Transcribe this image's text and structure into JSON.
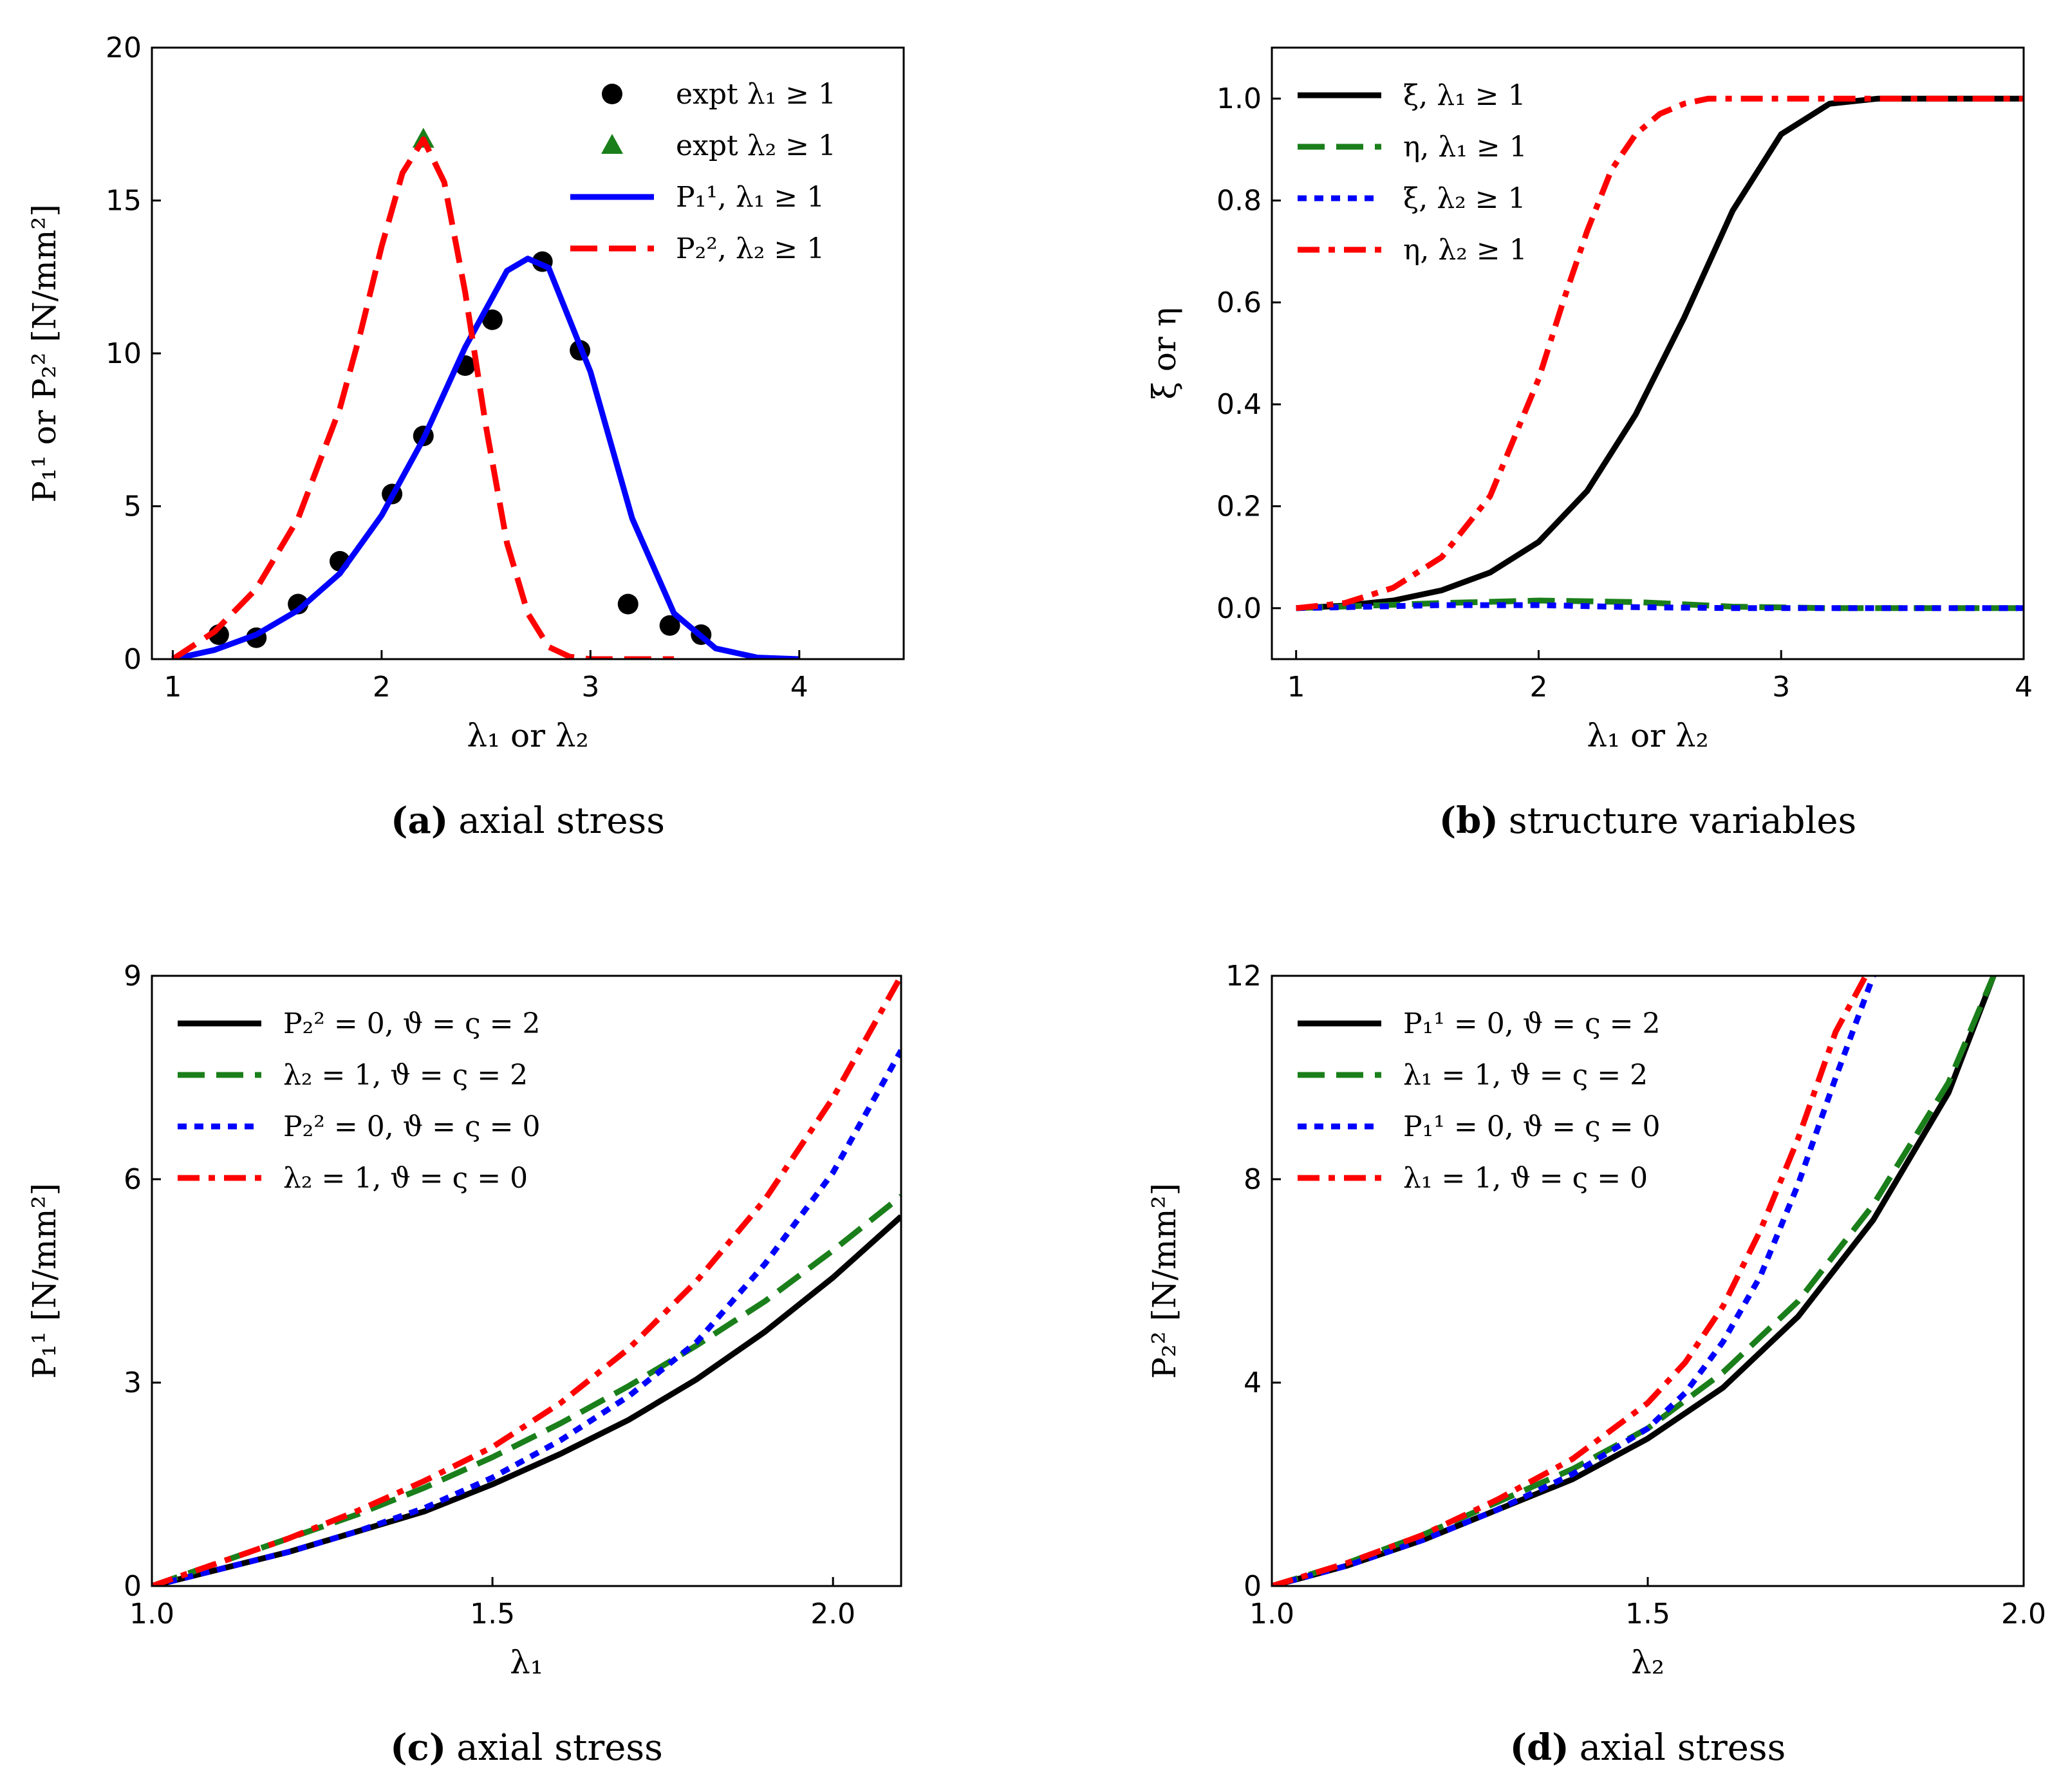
{
  "chart_data": [
    {
      "id": "a",
      "type": "line",
      "caption_tag": "(a)",
      "caption": "axial stress",
      "xlabel": "λ₁ or λ₂",
      "ylabel": "P₁¹ or P₂² [N/mm²]",
      "xlim": [
        0.9,
        4.5
      ],
      "ylim": [
        0,
        20
      ],
      "xticks": [
        1,
        2,
        3,
        4
      ],
      "yticks": [
        0,
        5,
        10,
        15,
        20
      ],
      "legend_position": "top-right",
      "series": [
        {
          "name": "expt λ₁ ≥ 1",
          "style": "scatter-circle",
          "color": "#000000",
          "x": [
            1.22,
            1.4,
            1.6,
            1.8,
            2.05,
            2.2,
            2.4,
            2.53,
            2.77,
            2.95,
            3.18,
            3.38,
            3.53
          ],
          "y": [
            0.8,
            0.7,
            1.8,
            3.2,
            5.4,
            7.3,
            9.6,
            11.1,
            13.0,
            10.1,
            1.8,
            1.1,
            0.8
          ]
        },
        {
          "name": "expt λ₂ ≥ 1",
          "style": "scatter-triangle",
          "color": "#1a7f1a",
          "x": [
            2.2
          ],
          "y": [
            17.0
          ]
        },
        {
          "name": "P₁¹, λ₁ ≥ 1",
          "style": "solid",
          "color": "#0000ff",
          "x": [
            1.0,
            1.2,
            1.4,
            1.6,
            1.8,
            2.0,
            2.2,
            2.4,
            2.6,
            2.7,
            2.8,
            3.0,
            3.2,
            3.4,
            3.6,
            3.8,
            4.0
          ],
          "y": [
            0.0,
            0.3,
            0.8,
            1.6,
            2.8,
            4.7,
            7.2,
            10.2,
            12.7,
            13.1,
            12.8,
            9.4,
            4.6,
            1.5,
            0.35,
            0.05,
            0.0
          ]
        },
        {
          "name": "P₂², λ₂ ≥ 1",
          "style": "dashed",
          "color": "#ff0000",
          "x": [
            1.0,
            1.2,
            1.4,
            1.6,
            1.8,
            1.9,
            2.0,
            2.1,
            2.2,
            2.3,
            2.4,
            2.5,
            2.6,
            2.7,
            2.8,
            2.9,
            3.0,
            3.2,
            3.4
          ],
          "y": [
            0.0,
            0.9,
            2.3,
            4.6,
            8.2,
            10.7,
            13.5,
            15.9,
            17.0,
            15.6,
            12.0,
            7.6,
            3.8,
            1.5,
            0.4,
            0.08,
            0.0,
            0.0,
            0.0
          ]
        }
      ]
    },
    {
      "id": "b",
      "type": "line",
      "caption_tag": "(b)",
      "caption": "structure variables",
      "xlabel": "λ₁ or λ₂",
      "ylabel": "ξ or η",
      "xlim": [
        0.9,
        4.0
      ],
      "ylim": [
        -0.1,
        1.1
      ],
      "xticks": [
        1,
        2,
        3,
        4
      ],
      "yticks": [
        0.0,
        0.2,
        0.4,
        0.6,
        0.8,
        1.0
      ],
      "ytick_labels": [
        "0.0",
        "0.2",
        "0.4",
        "0.6",
        "0.8",
        "1.0"
      ],
      "legend_position": "top-left",
      "series": [
        {
          "name": "ξ, λ₁ ≥ 1",
          "style": "solid",
          "color": "#000000",
          "x": [
            1.0,
            1.2,
            1.4,
            1.6,
            1.8,
            2.0,
            2.2,
            2.4,
            2.6,
            2.8,
            3.0,
            3.2,
            3.4,
            3.6,
            4.0
          ],
          "y": [
            0.0,
            0.005,
            0.015,
            0.035,
            0.07,
            0.13,
            0.23,
            0.38,
            0.57,
            0.78,
            0.93,
            0.99,
            1.0,
            1.0,
            1.0
          ]
        },
        {
          "name": "η, λ₁ ≥ 1",
          "style": "dashed",
          "color": "#1a7f1a",
          "x": [
            1.0,
            1.3,
            1.6,
            2.0,
            2.4,
            2.8,
            3.2,
            4.0
          ],
          "y": [
            0.0,
            0.005,
            0.01,
            0.015,
            0.012,
            0.003,
            0.0,
            0.0
          ]
        },
        {
          "name": "ξ, λ₂ ≥ 1",
          "style": "dotted",
          "color": "#0000ff",
          "x": [
            1.0,
            1.3,
            1.6,
            2.0,
            2.4,
            2.8,
            3.2,
            4.0
          ],
          "y": [
            0.0,
            0.003,
            0.006,
            0.006,
            0.002,
            0.0,
            0.0,
            0.0
          ]
        },
        {
          "name": "η, λ₂ ≥ 1",
          "style": "dashdot",
          "color": "#ff0000",
          "x": [
            1.0,
            1.2,
            1.4,
            1.6,
            1.8,
            2.0,
            2.1,
            2.2,
            2.3,
            2.4,
            2.5,
            2.6,
            2.7,
            2.8,
            3.0,
            3.5,
            4.0
          ],
          "y": [
            0.0,
            0.01,
            0.04,
            0.1,
            0.22,
            0.45,
            0.6,
            0.74,
            0.86,
            0.93,
            0.97,
            0.99,
            1.0,
            1.0,
            1.0,
            1.0,
            1.0
          ]
        }
      ]
    },
    {
      "id": "c",
      "type": "line",
      "caption_tag": "(c)",
      "caption": "axial stress",
      "xlabel": "λ₁",
      "ylabel": "P₁¹ [N/mm²]",
      "xlim": [
        1.0,
        2.1
      ],
      "ylim": [
        0,
        9
      ],
      "xticks": [
        1.0,
        1.5,
        2.0
      ],
      "xtick_labels": [
        "1.0",
        "1.5",
        "2.0"
      ],
      "yticks": [
        0,
        3,
        6,
        9
      ],
      "legend_position": "top-left",
      "series": [
        {
          "name": "P₂² = 0, ϑ = ς = 2",
          "style": "solid",
          "color": "#000000",
          "x": [
            1.0,
            1.1,
            1.2,
            1.3,
            1.4,
            1.5,
            1.6,
            1.7,
            1.8,
            1.9,
            2.0,
            2.1
          ],
          "y": [
            0.0,
            0.25,
            0.5,
            0.8,
            1.1,
            1.5,
            1.95,
            2.45,
            3.05,
            3.75,
            4.55,
            5.45
          ]
        },
        {
          "name": "λ₂ = 1, ϑ = ς = 2",
          "style": "dashed",
          "color": "#1a7f1a",
          "x": [
            1.0,
            1.1,
            1.2,
            1.3,
            1.4,
            1.5,
            1.6,
            1.7,
            1.8,
            1.9,
            2.0,
            2.1
          ],
          "y": [
            0.0,
            0.35,
            0.7,
            1.05,
            1.45,
            1.9,
            2.4,
            2.95,
            3.55,
            4.2,
            4.95,
            5.75
          ]
        },
        {
          "name": "P₂² = 0, ϑ = ς = 0",
          "style": "dotted",
          "color": "#0000ff",
          "x": [
            1.0,
            1.1,
            1.2,
            1.3,
            1.4,
            1.5,
            1.6,
            1.7,
            1.8,
            1.9,
            2.0,
            2.1
          ],
          "y": [
            0.0,
            0.25,
            0.5,
            0.8,
            1.15,
            1.6,
            2.15,
            2.8,
            3.6,
            4.75,
            6.1,
            7.9
          ]
        },
        {
          "name": "λ₂ = 1, ϑ = ς = 0",
          "style": "dashdot",
          "color": "#ff0000",
          "x": [
            1.0,
            1.1,
            1.2,
            1.3,
            1.4,
            1.5,
            1.6,
            1.7,
            1.8,
            1.9,
            2.0,
            2.1
          ],
          "y": [
            0.0,
            0.35,
            0.7,
            1.1,
            1.55,
            2.05,
            2.7,
            3.5,
            4.5,
            5.7,
            7.2,
            9.0
          ]
        }
      ]
    },
    {
      "id": "d",
      "type": "line",
      "caption_tag": "(d)",
      "caption": "axial stress",
      "xlabel": "λ₂",
      "ylabel": "P₂² [N/mm²]",
      "xlim": [
        1.0,
        2.0
      ],
      "ylim": [
        0,
        12
      ],
      "xticks": [
        1.0,
        1.5,
        2.0
      ],
      "xtick_labels": [
        "1.0",
        "1.5",
        "2.0"
      ],
      "yticks": [
        0,
        4,
        8,
        12
      ],
      "legend_position": "top-left",
      "series": [
        {
          "name": "P₁¹ = 0, ϑ = ς = 2",
          "style": "solid",
          "color": "#000000",
          "x": [
            1.0,
            1.1,
            1.2,
            1.3,
            1.4,
            1.5,
            1.6,
            1.7,
            1.8,
            1.9,
            1.96
          ],
          "y": [
            0.0,
            0.4,
            0.9,
            1.5,
            2.1,
            2.9,
            3.9,
            5.3,
            7.2,
            9.7,
            12.0
          ]
        },
        {
          "name": "λ₁ = 1, ϑ = ς = 2",
          "style": "dashed",
          "color": "#1a7f1a",
          "x": [
            1.0,
            1.1,
            1.2,
            1.3,
            1.4,
            1.5,
            1.6,
            1.7,
            1.8,
            1.9,
            1.96
          ],
          "y": [
            0.0,
            0.45,
            1.0,
            1.65,
            2.3,
            3.1,
            4.2,
            5.6,
            7.5,
            9.9,
            12.0
          ]
        },
        {
          "name": "P₁¹ = 0, ϑ = ς = 0",
          "style": "dotted",
          "color": "#0000ff",
          "x": [
            1.0,
            1.1,
            1.2,
            1.3,
            1.4,
            1.5,
            1.55,
            1.6,
            1.65,
            1.7,
            1.75,
            1.8
          ],
          "y": [
            0.0,
            0.4,
            0.9,
            1.5,
            2.2,
            3.1,
            3.8,
            4.8,
            6.1,
            7.9,
            10.0,
            12.0
          ]
        },
        {
          "name": "λ₁ = 1, ϑ = ς = 0",
          "style": "dashdot",
          "color": "#ff0000",
          "x": [
            1.0,
            1.1,
            1.2,
            1.3,
            1.4,
            1.5,
            1.55,
            1.6,
            1.65,
            1.7,
            1.75,
            1.79
          ],
          "y": [
            0.0,
            0.45,
            1.0,
            1.7,
            2.5,
            3.6,
            4.4,
            5.5,
            7.0,
            8.8,
            10.9,
            12.0
          ]
        }
      ]
    }
  ]
}
